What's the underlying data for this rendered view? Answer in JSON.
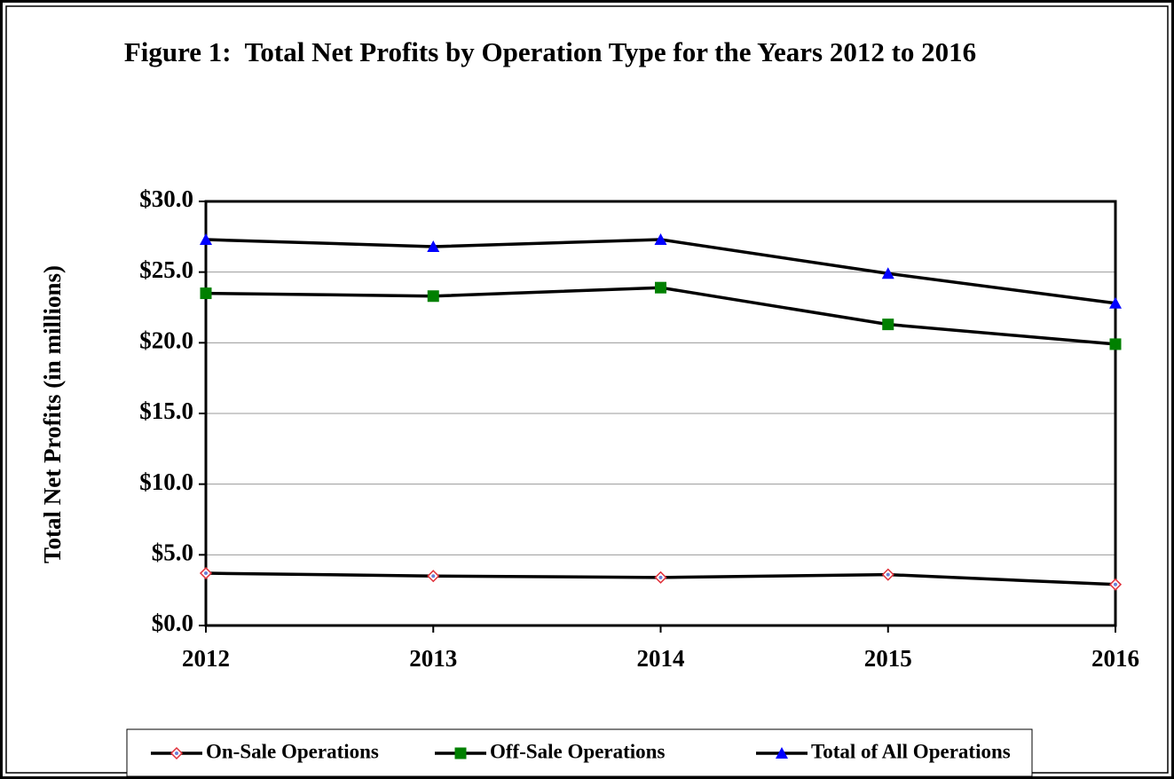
{
  "chart_data": {
    "type": "line",
    "title": "Figure 1:  Total Net Profits by Operation Type for the Years 2012 to 2016",
    "y_label": "Total Net Profits (in millions)",
    "categories": [
      "2012",
      "2013",
      "2014",
      "2015",
      "2016"
    ],
    "series": [
      {
        "name": "On-Sale Operations",
        "color": "#000000",
        "marker": "diamond",
        "values": [
          3.7,
          3.5,
          3.4,
          3.6,
          2.9
        ]
      },
      {
        "name": "Off-Sale Operations",
        "color": "#000000",
        "marker": "square",
        "values": [
          23.5,
          23.3,
          23.9,
          21.3,
          19.9
        ]
      },
      {
        "name": "Total of All Operations",
        "color": "#000000",
        "marker": "triangle",
        "values": [
          27.3,
          26.8,
          27.3,
          24.9,
          22.8
        ]
      }
    ],
    "ylim": [
      0,
      30
    ],
    "yticks": [
      {
        "value": 0,
        "label": "$0.0"
      },
      {
        "value": 5,
        "label": "$5.0"
      },
      {
        "value": 10,
        "label": "$10.0"
      },
      {
        "value": 15,
        "label": "$15.0"
      },
      {
        "value": 20,
        "label": "$20.0"
      },
      {
        "value": 25,
        "label": "$25.0"
      },
      {
        "value": 30,
        "label": "$30.0"
      }
    ],
    "grid": true,
    "legend": "bottom"
  }
}
